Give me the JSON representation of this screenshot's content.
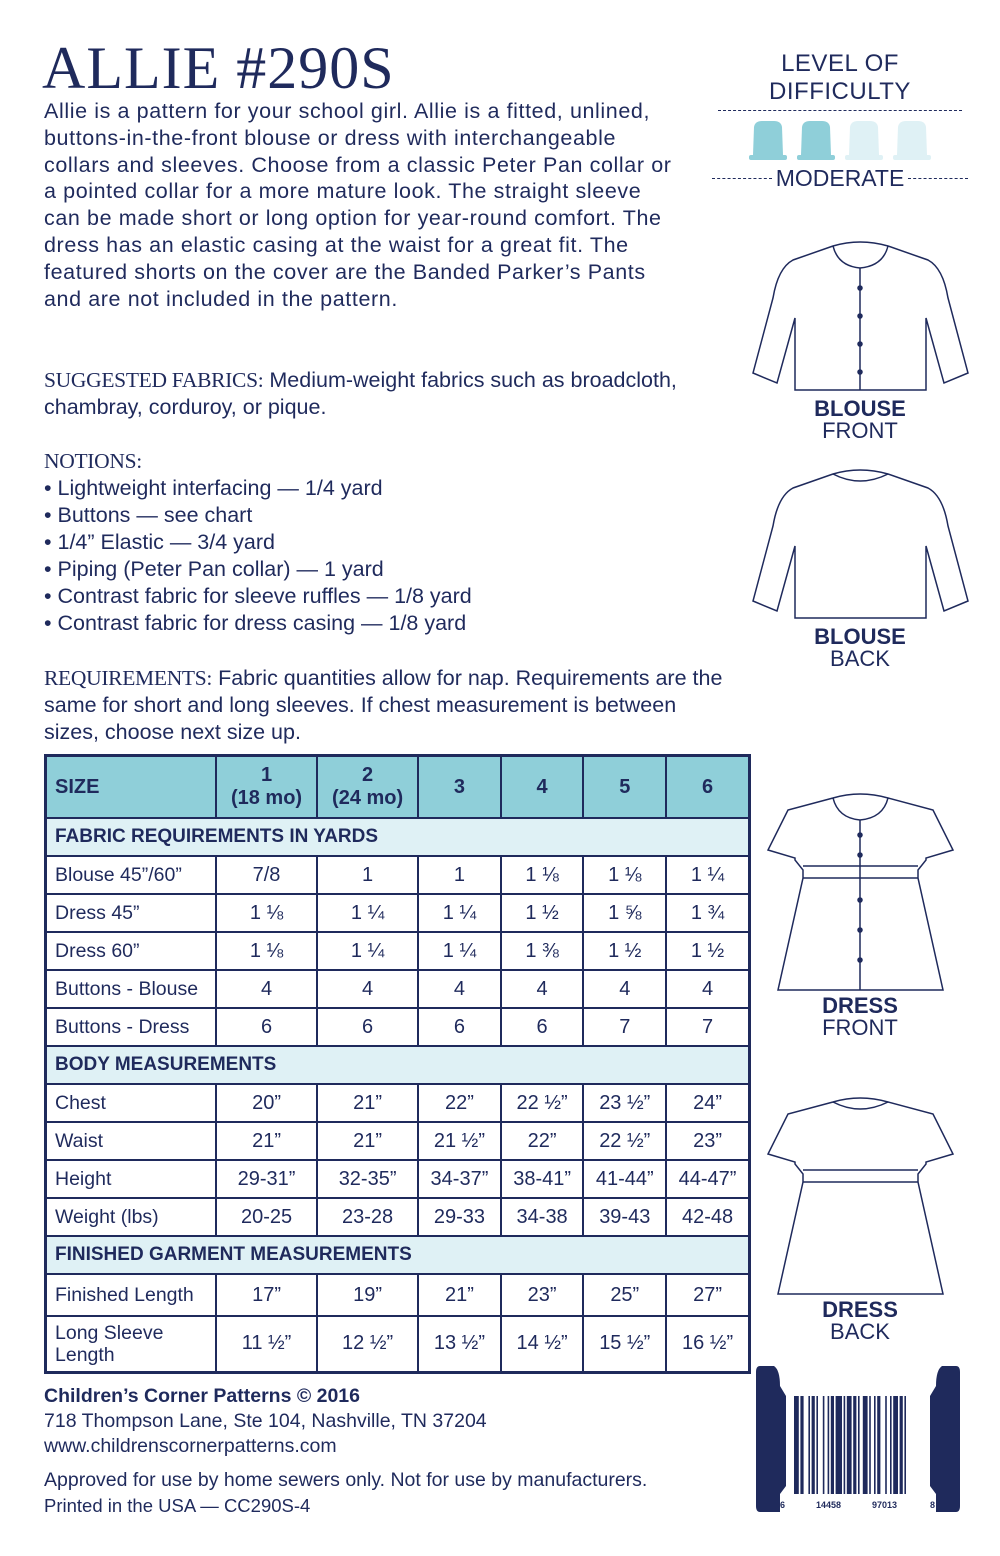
{
  "title": "ALLIE #290S",
  "intro": "Allie is a pattern for your school girl. Allie is a fitted, unlined, buttons-in-the-front blouse or dress with interchangeable collars and sleeves. Choose from a classic Peter Pan collar or a pointed collar for a more mature look. The straight sleeve can be made short or long option for year-round comfort. The dress has an elastic casing at the waist for a great fit. The featured shorts on the cover are the Banded Parker’s Pants and are not included in the pattern.",
  "fabrics": {
    "label": "SUGGESTED FABRICS:",
    "text": " Medium-weight fabrics such as broadcloth, chambray, corduroy, or pique."
  },
  "notions": {
    "label": "NOTIONS:",
    "items": [
      "• Lightweight interfacing — 1/4 yard",
      "• Buttons — see chart",
      "• 1/4” Elastic — 3/4 yard",
      "• Piping (Peter Pan collar) — 1 yard",
      "• Contrast fabric for sleeve ruffles — 1/8 yard",
      "• Contrast fabric for dress casing — 1/8 yard"
    ]
  },
  "requirements": {
    "label": "REQUIREMENTS:",
    "text": "  Fabric quantities allow for nap. Requirements are the same for short and long sleeves. If chest measurement is between sizes, choose next size up."
  },
  "difficulty": {
    "title": "LEVEL OF DIFFICULTY",
    "level": "MODERATE",
    "filled": 2,
    "total": 4,
    "filled_color": "#8fcfd9",
    "empty_color": "#dff1f5"
  },
  "colors": {
    "navy": "#1f2a5c",
    "header": "#8fcfd9",
    "band": "#dff1f5"
  },
  "table": {
    "headers": [
      [
        "SIZE",
        ""
      ],
      [
        "1",
        "(18 mo)"
      ],
      [
        "2",
        "(24 mo)"
      ],
      [
        "3",
        ""
      ],
      [
        "4",
        ""
      ],
      [
        "5",
        ""
      ],
      [
        "6",
        ""
      ]
    ],
    "sections": [
      {
        "title": "FABRIC REQUIREMENTS IN YARDS",
        "rows": [
          [
            "Blouse 45”/60”",
            "7/8",
            "1",
            "1",
            "1 ⅛",
            "1 ⅛",
            "1 ¼"
          ],
          [
            "Dress 45”",
            "1 ⅛",
            "1 ¼",
            "1 ¼",
            "1 ½",
            "1 ⅝",
            "1 ¾"
          ],
          [
            "Dress 60”",
            "1 ⅛",
            "1 ¼",
            "1 ¼",
            "1 ⅜",
            "1 ½",
            "1 ½"
          ],
          [
            "Buttons - Blouse",
            "4",
            "4",
            "4",
            "4",
            "4",
            "4"
          ],
          [
            "Buttons - Dress",
            "6",
            "6",
            "6",
            "6",
            "7",
            "7"
          ]
        ]
      },
      {
        "title": "BODY MEASUREMENTS",
        "rows": [
          [
            "Chest",
            "20”",
            "21”",
            "22”",
            "22 ½”",
            "23 ½”",
            "24”"
          ],
          [
            "Waist",
            "21”",
            "21”",
            "21 ½”",
            "22”",
            "22 ½”",
            "23”"
          ],
          [
            "Height",
            "29-31”",
            "32-35”",
            "34-37”",
            "38-41”",
            "41-44”",
            "44-47”"
          ],
          [
            "Weight (lbs)",
            "20-25",
            "23-28",
            "29-33",
            "34-38",
            "39-43",
            "42-48"
          ]
        ]
      },
      {
        "title": "FINISHED GARMENT MEASUREMENTS",
        "rows": [
          [
            "Finished Length",
            "17”",
            "19”",
            "21”",
            "23”",
            "25”",
            "27”"
          ],
          [
            "Long Sleeve Length",
            "11 ½”",
            "12 ½”",
            "13 ½”",
            "14 ½”",
            "15 ½”",
            "16 ½”"
          ]
        ]
      }
    ]
  },
  "garments": [
    {
      "l1": "BLOUSE",
      "l2": "FRONT"
    },
    {
      "l1": "BLOUSE",
      "l2": "BACK"
    },
    {
      "l1": "DRESS",
      "l2": "FRONT"
    },
    {
      "l1": "DRESS",
      "l2": "BACK"
    }
  ],
  "footer": {
    "company": "Children’s Corner Patterns © 2016",
    "address": "718 Thompson Lane, Ste 104, Nashville, TN 37204",
    "website": "www.childrenscornerpatterns.com",
    "approved": "Approved for use by home sewers only. Not for use by manufacturers.",
    "printed": "Printed in the USA — CC290S-4"
  },
  "barcode": {
    "d1": "6",
    "d2": "14458",
    "d3": "97013",
    "d4": "8"
  }
}
